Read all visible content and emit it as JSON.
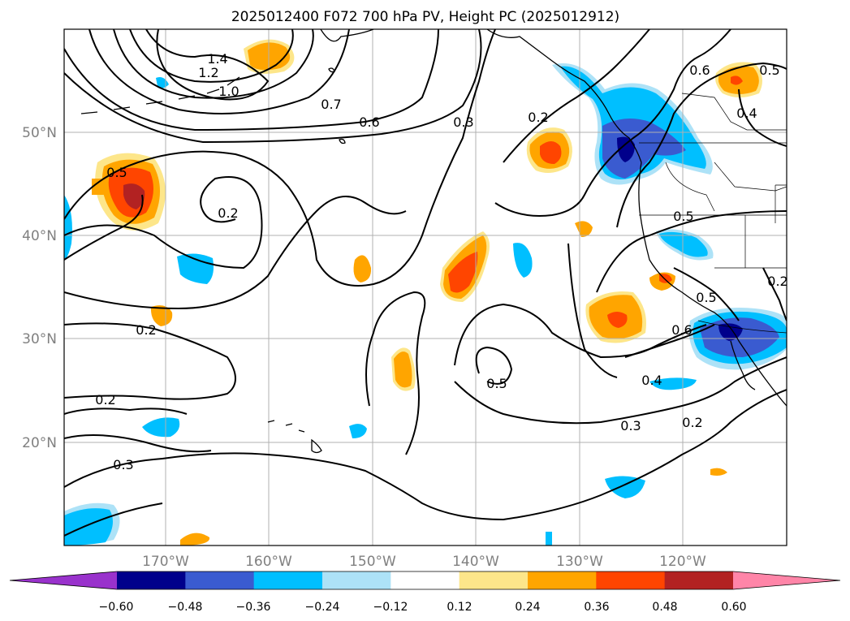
{
  "title": "2025012400 F072 700 hPa PV, Height PC (2025012912)",
  "lat_labels": [
    "50°N",
    "40°N",
    "30°N",
    "20°N"
  ],
  "lon_labels": [
    "170°W",
    "160°W",
    "150°W",
    "140°W",
    "130°W",
    "120°W"
  ],
  "colorbar": {
    "ticks": [
      "−0.60",
      "−0.48",
      "−0.36",
      "−0.24",
      "−0.12",
      "0.12",
      "0.24",
      "0.36",
      "0.48",
      "0.60"
    ],
    "colors": [
      "#9932cc",
      "#00008b",
      "#3a5bd0",
      "#00bfff",
      "#ade2f7",
      "#ffffff",
      "#fde68a",
      "#ffa500",
      "#ff4500",
      "#b22222",
      "#ff85a8"
    ]
  },
  "contour_labels": [
    "1.4",
    "1.2",
    "1.0",
    "0.7",
    "0.6",
    "0.3",
    "0.2",
    "0.6",
    "0.5",
    "0.4",
    "0.5",
    "0.2",
    "0.5",
    "0.5",
    "0.2",
    "0.2",
    "0.3",
    "0.5",
    "0.4",
    "0.3",
    "0.2",
    "0.6",
    "0.2"
  ]
}
